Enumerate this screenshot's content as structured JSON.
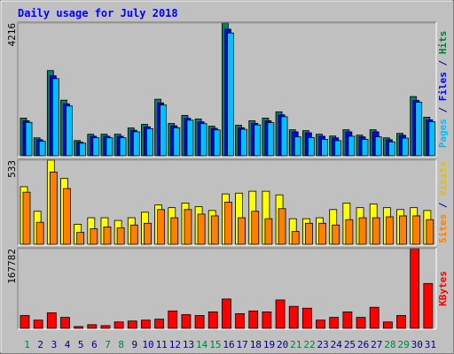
{
  "title": "Daily usage for July 2018",
  "legend_separator": " / ",
  "chart_data": [
    {
      "type": "bar",
      "categories": [
        "1",
        "2",
        "3",
        "4",
        "5",
        "6",
        "7",
        "8",
        "9",
        "10",
        "11",
        "12",
        "13",
        "14",
        "15",
        "16",
        "17",
        "18",
        "19",
        "20",
        "21",
        "22",
        "23",
        "24",
        "25",
        "26",
        "27",
        "28",
        "29",
        "30",
        "31"
      ],
      "category_colors": [
        "#008040",
        "#000080",
        "#000080",
        "#000080",
        "#000080",
        "#000080",
        "#008040",
        "#008040",
        "#000080",
        "#000080",
        "#000080",
        "#000080",
        "#000080",
        "#008040",
        "#008040",
        "#000080",
        "#000080",
        "#000080",
        "#000080",
        "#000080",
        "#008040",
        "#008040",
        "#000080",
        "#000080",
        "#000080",
        "#000080",
        "#000080",
        "#008040",
        "#008040",
        "#000080",
        "#000080"
      ],
      "series": [
        {
          "name": "Hits",
          "color": "#008060",
          "label_color": "#008040",
          "values": [
            1196,
            570,
            2706,
            1766,
            484,
            684,
            684,
            684,
            883,
            997,
            1795,
            1025,
            1282,
            1168,
            940,
            4216,
            968,
            1111,
            1196,
            1396,
            826,
            798,
            684,
            627,
            826,
            655,
            826,
            570,
            712,
            1880,
            1225
          ]
        },
        {
          "name": "Files",
          "color": "#0000ff",
          "label_color": "#0000ff",
          "values": [
            1110,
            510,
            2540,
            1650,
            430,
            620,
            620,
            620,
            810,
            920,
            1680,
            950,
            1190,
            1080,
            870,
            4020,
            890,
            1030,
            1110,
            1300,
            760,
            730,
            620,
            570,
            760,
            600,
            760,
            510,
            650,
            1760,
            1140
          ]
        },
        {
          "name": "Pages",
          "color": "#00c0ff",
          "label_color": "#00c0ff",
          "values": [
            1060,
            460,
            2450,
            1580,
            400,
            570,
            570,
            570,
            760,
            860,
            1610,
            890,
            1130,
            1020,
            820,
            3900,
            840,
            980,
            1050,
            1240,
            600,
            580,
            520,
            480,
            620,
            520,
            600,
            440,
            560,
            1700,
            1080
          ]
        }
      ],
      "ylim": [
        0,
        4216
      ],
      "yticks": [
        4216
      ]
    },
    {
      "type": "bar",
      "series": [
        {
          "name": "Visits",
          "color": "#ffff00",
          "label_color": "#e0c000",
          "values": [
            365,
            209,
            533,
            417,
            127,
            168,
            168,
            151,
            168,
            203,
            249,
            232,
            261,
            238,
            214,
            319,
            324,
            336,
            336,
            313,
            162,
            162,
            168,
            220,
            261,
            232,
            255,
            232,
            220,
            232,
            214
          ]
        },
        {
          "name": "Sites",
          "color": "#ff8000",
          "label_color": "#ff8000",
          "values": [
            330,
            139,
            458,
            353,
            75,
            98,
            110,
            104,
            122,
            133,
            220,
            168,
            220,
            191,
            180,
            267,
            168,
            209,
            162,
            226,
            81,
            133,
            133,
            122,
            156,
            168,
            168,
            174,
            180,
            180,
            156
          ]
        }
      ],
      "ylim": [
        0,
        533
      ],
      "yticks": [
        533
      ]
    },
    {
      "type": "bar",
      "series": [
        {
          "name": "KBytes",
          "color": "#ff0000",
          "label_color": "#ff0000",
          "values": [
            27000,
            17357,
            32785,
            23142,
            3857,
            7714,
            5786,
            13500,
            15428,
            17357,
            19285,
            36642,
            28928,
            27000,
            34714,
            61714,
            30857,
            36642,
            34714,
            59785,
            46285,
            42428,
            17357,
            23142,
            34714,
            23142,
            44357,
            13500,
            27000,
            167782,
            94500
          ]
        }
      ],
      "ylim": [
        0,
        167782
      ],
      "yticks": [
        167782
      ]
    }
  ]
}
